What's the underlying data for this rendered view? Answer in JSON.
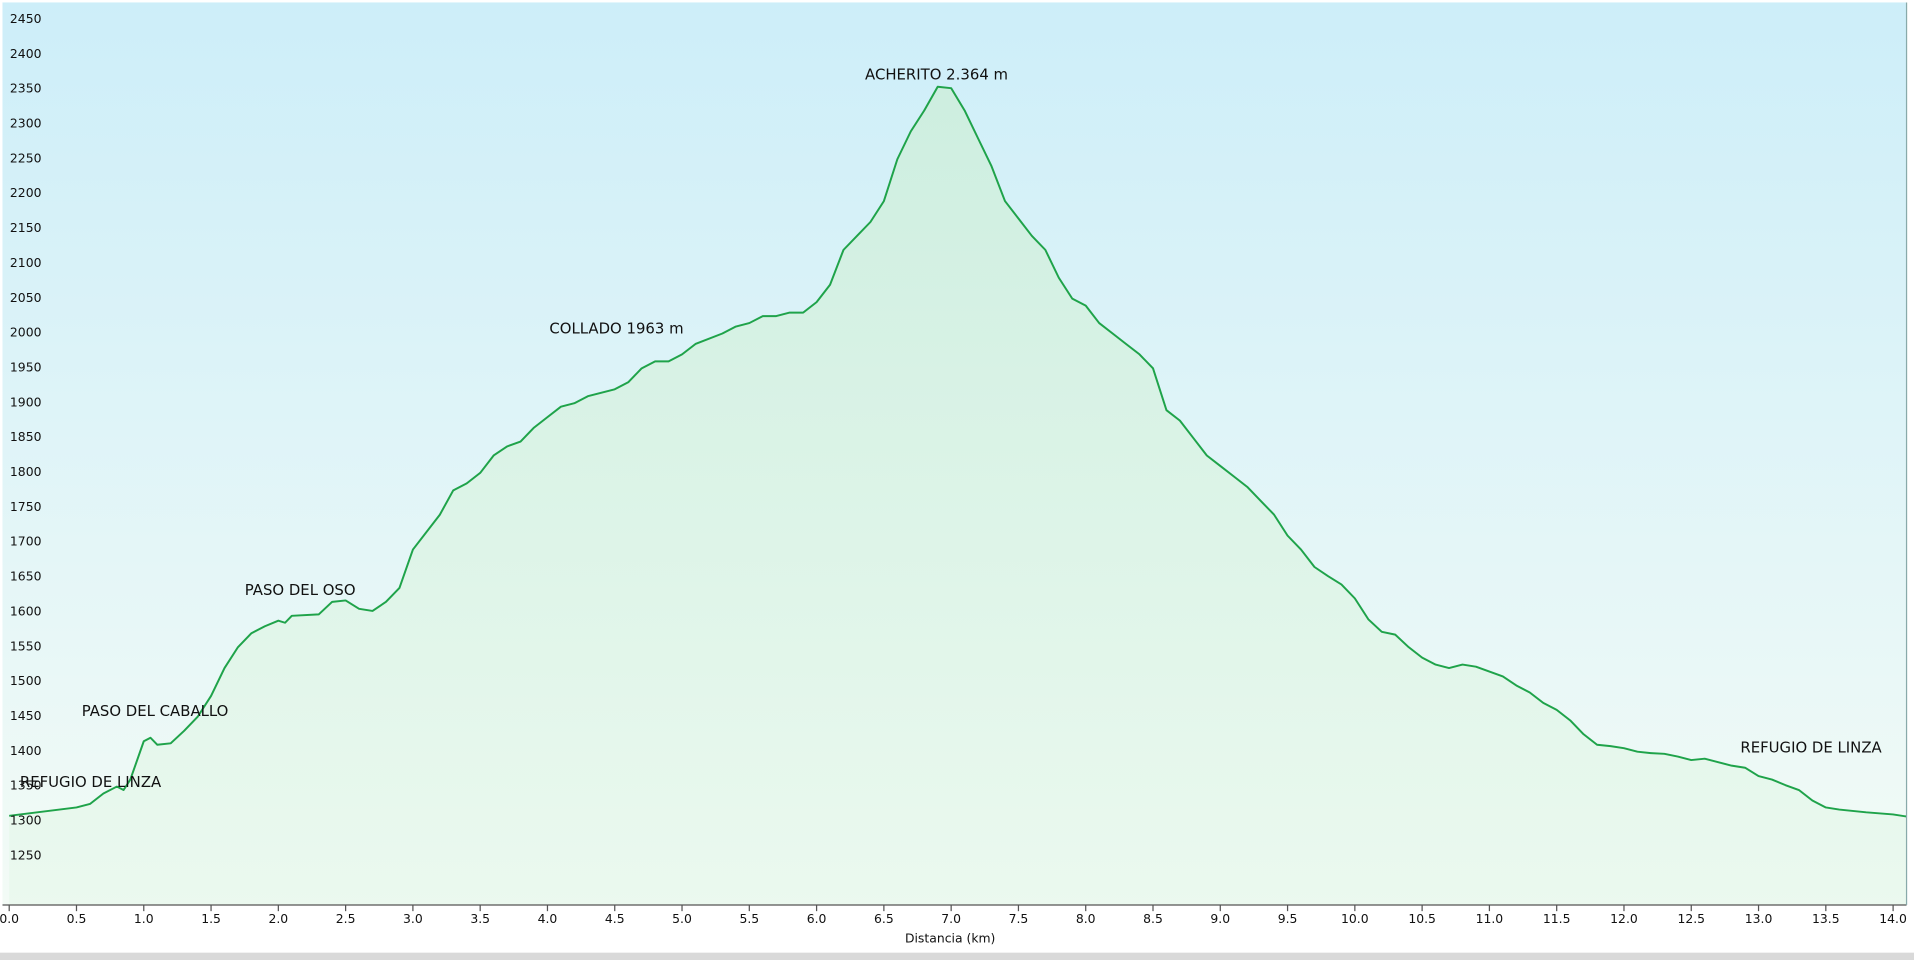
{
  "chart_data": {
    "type": "area",
    "x_label": "Distancia  (km)",
    "color": "#1fa34a",
    "grid": true,
    "xlim": [
      -0.05,
      14.1
    ],
    "ylim": [
      1190,
      2485
    ],
    "xticks": [
      {
        "value": 0,
        "label": "0.0"
      },
      {
        "value": 0.5,
        "label": "0.5"
      },
      {
        "value": 1,
        "label": "1.0"
      },
      {
        "value": 1.5,
        "label": "1.5"
      },
      {
        "value": 2,
        "label": "2.0"
      },
      {
        "value": 2.5,
        "label": "2.5"
      },
      {
        "value": 3,
        "label": "3.0"
      },
      {
        "value": 3.5,
        "label": "3.5"
      },
      {
        "value": 4,
        "label": "4.0"
      },
      {
        "value": 4.5,
        "label": "4.5"
      },
      {
        "value": 5,
        "label": "5.0"
      },
      {
        "value": 5.5,
        "label": "5.5"
      },
      {
        "value": 6,
        "label": "6.0"
      },
      {
        "value": 6.5,
        "label": "6.5"
      },
      {
        "value": 7,
        "label": "7.0"
      },
      {
        "value": 7.5,
        "label": "7.5"
      },
      {
        "value": 8,
        "label": "8.0"
      },
      {
        "value": 8.5,
        "label": "8.5"
      },
      {
        "value": 9,
        "label": "9.0"
      },
      {
        "value": 9.5,
        "label": "9.5"
      },
      {
        "value": 10,
        "label": "10.0"
      },
      {
        "value": 10.5,
        "label": "10.5"
      },
      {
        "value": 11,
        "label": "11.0"
      },
      {
        "value": 11.5,
        "label": "11.5"
      },
      {
        "value": 12,
        "label": "12.0"
      },
      {
        "value": 12.5,
        "label": "12.5"
      },
      {
        "value": 13,
        "label": "13.0"
      },
      {
        "value": 13.5,
        "label": "13.5"
      },
      {
        "value": 14,
        "label": "14.0"
      }
    ],
    "yticks": [
      1250,
      1300,
      1350,
      1400,
      1450,
      1500,
      1550,
      1600,
      1650,
      1700,
      1750,
      1800,
      1850,
      1900,
      1950,
      2000,
      2050,
      2100,
      2150,
      2200,
      2250,
      2300,
      2350,
      2400,
      2450
    ],
    "x": [
      0,
      0.5,
      0.6,
      0.7,
      0.8,
      0.85,
      0.9,
      1.0,
      1.05,
      1.1,
      1.2,
      1.3,
      1.4,
      1.5,
      1.6,
      1.7,
      1.8,
      1.9,
      2.0,
      2.05,
      2.1,
      2.3,
      2.4,
      2.5,
      2.6,
      2.7,
      2.8,
      2.9,
      3.0,
      3.2,
      3.3,
      3.4,
      3.5,
      3.6,
      3.7,
      3.8,
      3.9,
      4.0,
      4.1,
      4.2,
      4.3,
      4.5,
      4.6,
      4.7,
      4.8,
      4.9,
      5.0,
      5.1,
      5.3,
      5.4,
      5.5,
      5.6,
      5.7,
      5.8,
      5.9,
      6.0,
      6.1,
      6.2,
      6.3,
      6.4,
      6.5,
      6.6,
      6.7,
      6.8,
      6.9,
      7.0,
      7.1,
      7.2,
      7.3,
      7.4,
      7.5,
      7.6,
      7.7,
      7.8,
      7.9,
      8.0,
      8.1,
      8.2,
      8.3,
      8.4,
      8.5,
      8.6,
      8.7,
      8.8,
      8.9,
      9.0,
      9.1,
      9.2,
      9.3,
      9.4,
      9.5,
      9.6,
      9.7,
      9.8,
      9.9,
      10.0,
      10.1,
      10.2,
      10.3,
      10.4,
      10.5,
      10.6,
      10.7,
      10.8,
      10.9,
      11.0,
      11.1,
      11.2,
      11.3,
      11.4,
      11.5,
      11.6,
      11.7,
      11.8,
      11.9,
      12.0,
      12.1,
      12.2,
      12.3,
      12.4,
      12.5,
      12.6,
      12.7,
      12.8,
      12.9,
      13.0,
      13.1,
      13.2,
      13.3,
      13.4,
      13.5,
      13.6,
      13.8,
      14.0,
      14.1
    ],
    "values": [
      1318,
      1330,
      1335,
      1350,
      1360,
      1355,
      1370,
      1425,
      1430,
      1420,
      1422,
      1440,
      1460,
      1490,
      1530,
      1560,
      1580,
      1590,
      1598,
      1595,
      1605,
      1607,
      1625,
      1627,
      1615,
      1612,
      1625,
      1645,
      1700,
      1750,
      1785,
      1795,
      1810,
      1835,
      1848,
      1855,
      1875,
      1890,
      1905,
      1910,
      1920,
      1930,
      1940,
      1960,
      1970,
      1970,
      1980,
      1995,
      2010,
      2020,
      2025,
      2035,
      2035,
      2040,
      2040,
      2055,
      2080,
      2130,
      2150,
      2170,
      2200,
      2260,
      2300,
      2330,
      2364,
      2362,
      2330,
      2290,
      2250,
      2200,
      2175,
      2150,
      2130,
      2090,
      2060,
      2050,
      2025,
      2010,
      1995,
      1980,
      1960,
      1900,
      1885,
      1860,
      1835,
      1820,
      1805,
      1790,
      1770,
      1750,
      1720,
      1700,
      1675,
      1662,
      1650,
      1630,
      1600,
      1582,
      1578,
      1560,
      1545,
      1535,
      1530,
      1535,
      1532,
      1525,
      1518,
      1505,
      1495,
      1480,
      1470,
      1455,
      1435,
      1420,
      1418,
      1415,
      1410,
      1408,
      1407,
      1403,
      1398,
      1400,
      1395,
      1390,
      1387,
      1375,
      1370,
      1362,
      1355,
      1340,
      1330,
      1327,
      1323,
      1320,
      1317
    ],
    "annotations": [
      "ACHERITO 2.364 m",
      "COLLADO 1963 m",
      "PASO DEL OSO",
      "PASO DEL CABALLO",
      "REFUGIO DE LINZA",
      "REFUGIO DE LINZA"
    ]
  }
}
